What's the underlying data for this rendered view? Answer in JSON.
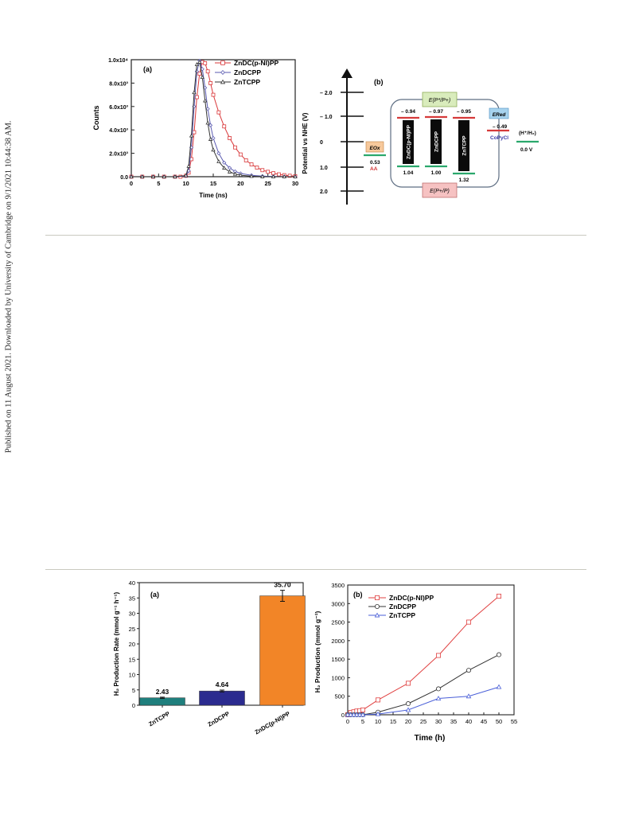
{
  "sidebar": {
    "text": "Published on 11 August 2021. Downloaded by University of Cambridge on 9/1/2021 10:44:38 AM."
  },
  "figure_top": {
    "panel_a": {
      "panel_label": "(a)",
      "ylabel": "Counts",
      "xlabel": "Time (ns)",
      "y_ticks": [
        "0.0",
        "2.0x10³",
        "4.0x10³",
        "6.0x10³",
        "8.0x10³",
        "1.0x10⁴"
      ],
      "x_ticks": [
        "0",
        "5",
        "10",
        "15",
        "20",
        "25",
        "30"
      ],
      "legend": [
        "ZnDC(p-NI)PP",
        "ZnDCPP",
        "ZnTCPP"
      ]
    },
    "panel_b": {
      "panel_label": "(b)",
      "ylabel": "Potential vs NHE (V)",
      "y_ticks": [
        "– 2.0",
        "– 1.0",
        "0",
        "1.0",
        "2.0"
      ],
      "top_box": "E(P*/P+)",
      "bottom_box": "E(P+/P)",
      "ox_box": "EOx",
      "red_box": "ERed",
      "ox_value": "0.53",
      "ox_label": "AA",
      "red_value": "– 0.49",
      "red_label": "CoPyCl",
      "h_label": "(H⁺/H₂)",
      "h_value": "0.0 V",
      "compounds": [
        {
          "name": "ZnDC(p-NI)PP",
          "top": "– 0.94",
          "bottom": "1.04"
        },
        {
          "name": "ZnDCPP",
          "top": "– 0.97",
          "bottom": "1.00"
        },
        {
          "name": "ZnTCPP",
          "top": "– 0.95",
          "bottom": "1.32"
        }
      ]
    }
  },
  "figure_bottom": {
    "panel_a": {
      "panel_label": "(a)",
      "ylabel": "H₂ Production Rate (mmol g⁻¹ h⁻¹)",
      "y_ticks": [
        "0",
        "5",
        "10",
        "15",
        "20",
        "25",
        "30",
        "35",
        "40"
      ],
      "bar_labels": [
        "2.43",
        "4.64",
        "35.70"
      ],
      "categories": [
        "ZnTCPP",
        "ZnDCPP",
        "ZnDC(p-NI)PP"
      ]
    },
    "panel_b": {
      "panel_label": "(b)",
      "ylabel": "H₂ Production (mmol g⁻¹)",
      "xlabel": "Time (h)",
      "y_ticks": [
        "0",
        "500",
        "1000",
        "1500",
        "2000",
        "2500",
        "3000",
        "3500"
      ],
      "x_ticks": [
        "0",
        "5",
        "10",
        "15",
        "20",
        "25",
        "30",
        "35",
        "40",
        "45",
        "50",
        "55"
      ],
      "legend": [
        "ZnDC(p-NI)PP",
        "ZnDCPP",
        "ZnTCPP"
      ]
    }
  },
  "chart_data": [
    {
      "type": "line",
      "xlabel": "Time (ns)",
      "ylabel": "Counts",
      "xlim": [
        0,
        30
      ],
      "ylim": [
        0,
        10000
      ],
      "series": [
        {
          "name": "ZnDC(p-NI)PP",
          "color": "#d9383a",
          "marker": "square",
          "x": [
            0,
            2,
            4,
            6,
            8,
            9,
            10,
            10.5,
            11,
            11.5,
            12,
            12.5,
            13,
            13.5,
            14,
            14.5,
            15,
            16,
            17,
            18,
            19,
            20,
            21,
            22,
            23,
            24,
            25,
            26,
            27,
            28,
            29,
            30
          ],
          "y": [
            0,
            0,
            0,
            0,
            0,
            0,
            80,
            350,
            1500,
            3800,
            6800,
            8800,
            9800,
            9700,
            9000,
            8000,
            7000,
            5500,
            4300,
            3300,
            2500,
            1900,
            1400,
            1050,
            780,
            560,
            420,
            300,
            200,
            130,
            80,
            40
          ]
        },
        {
          "name": "ZnDCPP",
          "color": "#5a5ab0",
          "marker": "diamond",
          "x": [
            0,
            2,
            4,
            6,
            8,
            10,
            10.5,
            11,
            11.5,
            12,
            12.5,
            13,
            13.5,
            14,
            14.5,
            15,
            16,
            17,
            18,
            19,
            20,
            22,
            24,
            26,
            28,
            30
          ],
          "y": [
            0,
            0,
            0,
            0,
            0,
            60,
            500,
            2500,
            6000,
            9000,
            9900,
            9200,
            7600,
            5800,
            4400,
            3300,
            2000,
            1200,
            750,
            450,
            280,
            120,
            50,
            20,
            5,
            0
          ]
        },
        {
          "name": "ZnTCPP",
          "color": "#333333",
          "marker": "triangle",
          "x": [
            0,
            2,
            4,
            6,
            8,
            10,
            10.5,
            11,
            11.5,
            12,
            12.5,
            13,
            13.5,
            14,
            14.5,
            15,
            16,
            17,
            18,
            19,
            20,
            22,
            24,
            26,
            28,
            30
          ],
          "y": [
            0,
            0,
            0,
            0,
            0,
            100,
            900,
            3500,
            7200,
            9600,
            9800,
            8500,
            6500,
            4600,
            3200,
            2300,
            1300,
            750,
            420,
            230,
            130,
            40,
            10,
            0,
            0,
            0
          ]
        }
      ]
    },
    {
      "type": "bar",
      "categories": [
        "ZnTCPP",
        "ZnDCPP",
        "ZnDC(p-NI)PP"
      ],
      "values": [
        2.43,
        4.64,
        35.7
      ],
      "errors": [
        0.2,
        0.3,
        1.8
      ],
      "colors": [
        "#1f7f7d",
        "#2b2b8f",
        "#f28527"
      ],
      "ylabel": "H₂ Production Rate (mmol g⁻¹ h⁻¹)",
      "ylim": [
        0,
        40
      ]
    },
    {
      "type": "line",
      "xlabel": "Time (h)",
      "ylabel": "H₂ Production (mmol g⁻¹)",
      "xlim": [
        0,
        55
      ],
      "ylim": [
        0,
        3500
      ],
      "series": [
        {
          "name": "ZnDC(p-NI)PP",
          "color": "#e04040",
          "marker": "square",
          "x": [
            0,
            1,
            2,
            3,
            4,
            5,
            10,
            20,
            30,
            40,
            50
          ],
          "y": [
            0,
            60,
            80,
            100,
            110,
            130,
            400,
            850,
            1600,
            2500,
            3200
          ]
        },
        {
          "name": "ZnDCPP",
          "color": "#333333",
          "marker": "circle",
          "x": [
            0,
            1,
            2,
            3,
            4,
            5,
            10,
            20,
            30,
            40,
            50
          ],
          "y": [
            0,
            0,
            0,
            0,
            0,
            0,
            70,
            300,
            700,
            1200,
            1620
          ]
        },
        {
          "name": "ZnTCPP",
          "color": "#4a5fd8",
          "marker": "triangle",
          "x": [
            0,
            1,
            2,
            3,
            4,
            5,
            10,
            20,
            30,
            40,
            50
          ],
          "y": [
            0,
            0,
            0,
            0,
            0,
            0,
            20,
            130,
            440,
            500,
            750
          ]
        }
      ]
    }
  ]
}
